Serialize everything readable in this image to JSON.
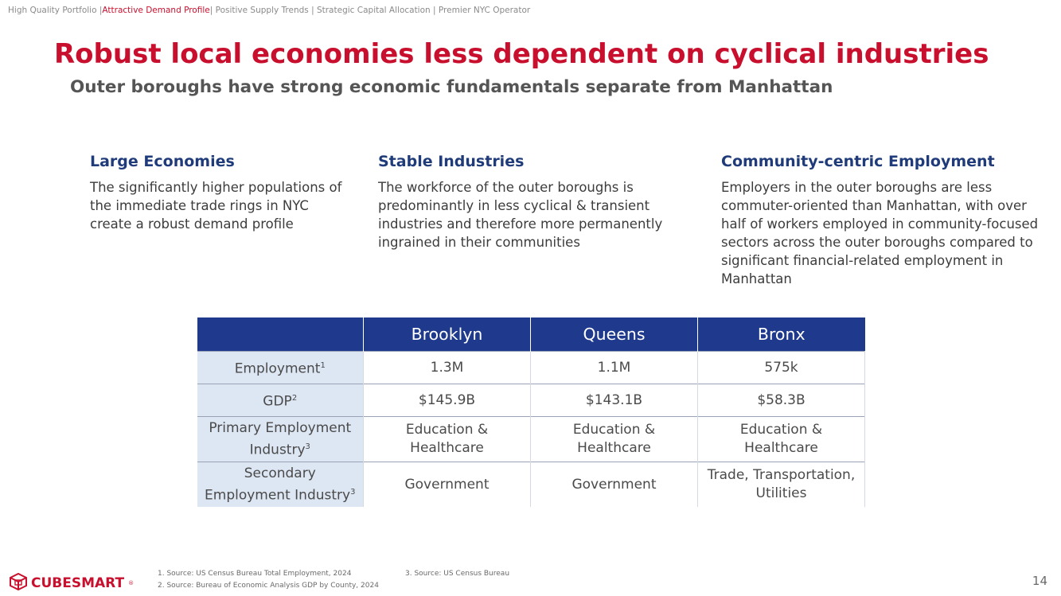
{
  "nav": {
    "items": [
      "High Quality Portfolio |",
      "Attractive Demand Profile",
      "| Positive Supply Trends | Strategic Capital Allocation | Premier NYC Operator"
    ]
  },
  "title": "Robust local economies less dependent on cyclical industries",
  "subtitle": "Outer boroughs have strong economic fundamentals separate from Manhattan",
  "columns": [
    {
      "heading": "Large Economies",
      "body": "The significantly higher populations of the immediate trade rings in NYC create a robust demand profile"
    },
    {
      "heading": "Stable Industries",
      "body": "The workforce of the outer boroughs is predominantly in less cyclical & transient industries and therefore more permanently ingrained in their communities"
    },
    {
      "heading": "Community-centric Employment",
      "body": "Employers in the outer boroughs are less commuter-oriented than Manhattan, with over half of workers employed in community-focused sectors across the outer boroughs compared to significant financial-related employment in Manhattan"
    }
  ],
  "table": {
    "headers": [
      "",
      "Brooklyn",
      "Queens",
      "Bronx"
    ],
    "rows": [
      {
        "label": "Employment",
        "sup": "1",
        "values": [
          "1.3M",
          "1.1M",
          "575k"
        ]
      },
      {
        "label": "GDP",
        "sup": "2",
        "values": [
          "$145.9B",
          "$143.1B",
          "$58.3B"
        ]
      },
      {
        "label_line1": "Primary Employment",
        "label_line2": "Industry",
        "sup": "3",
        "values": [
          "Education & Healthcare",
          "Education & Healthcare",
          "Education & Healthcare"
        ]
      },
      {
        "label_line1": "Secondary",
        "label_line2": "Employment Industry",
        "sup": "3",
        "values": [
          "Government",
          "Government",
          "Trade, Transportation, Utilities"
        ]
      }
    ]
  },
  "footnotes": {
    "fn1": "1.    Source: US Census Bureau Total Employment, 2024",
    "fn2": "2.    Source: Bureau of Economic Analysis GDP by County, 2024",
    "fn3": "3.    Source: US Census Bureau"
  },
  "logo": {
    "text": "CUBESMART",
    "icon": "cube-icon",
    "color": "#c8102e"
  },
  "page_number": "14",
  "colors": {
    "accent": "#c8102e",
    "navy": "#1f3a8c",
    "row_label_bg": "#dde6f3"
  }
}
